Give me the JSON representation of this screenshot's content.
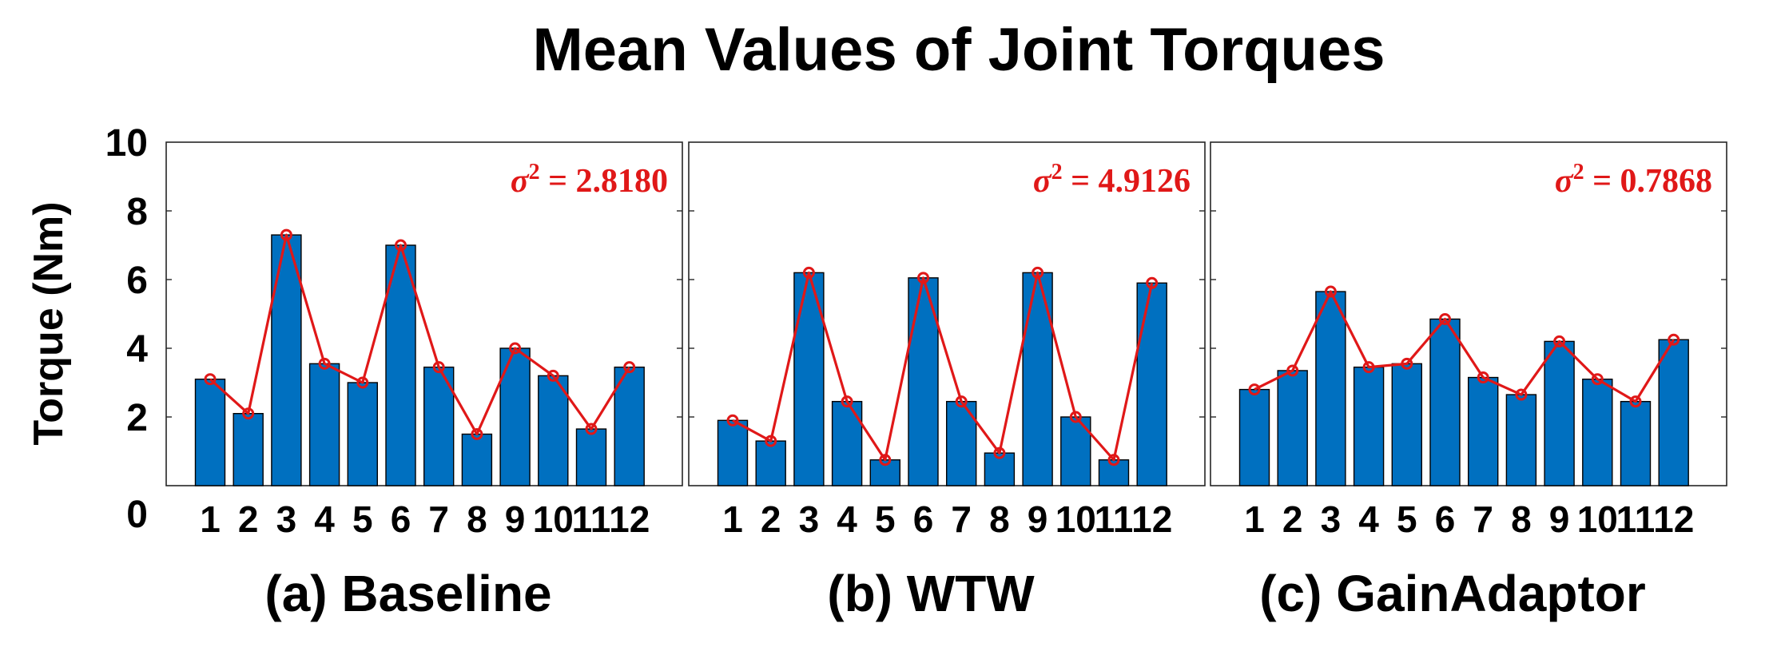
{
  "figure": {
    "title": "Mean Values of Joint Torques",
    "ylabel": "Torque (Nm)",
    "yticks": [
      "0",
      "2",
      "4",
      "6",
      "8",
      "10"
    ]
  },
  "colors": {
    "bar_fill": "#0070c0",
    "bar_edge": "#000000",
    "line": "#e01818",
    "axis": "#262626"
  },
  "chart_data": [
    {
      "type": "bar",
      "caption": "(a) Baseline",
      "annotation": {
        "symbol": "σ",
        "exponent": "2",
        "text": " = 2.8180"
      },
      "categories": [
        "1",
        "2",
        "3",
        "4",
        "5",
        "6",
        "7",
        "8",
        "9",
        "10",
        "11",
        "12"
      ],
      "values": [
        3.1,
        2.1,
        7.3,
        3.55,
        3.0,
        7.0,
        3.45,
        1.5,
        4.0,
        3.2,
        1.65,
        3.45
      ],
      "line_overlay": true,
      "ylim": [
        0,
        10
      ],
      "grid": false
    },
    {
      "type": "bar",
      "caption": "(b) WTW",
      "annotation": {
        "symbol": "σ",
        "exponent": "2",
        "text": " = 4.9126"
      },
      "categories": [
        "1",
        "2",
        "3",
        "4",
        "5",
        "6",
        "7",
        "8",
        "9",
        "10",
        "11",
        "12"
      ],
      "values": [
        1.9,
        1.3,
        6.2,
        2.45,
        0.75,
        6.05,
        2.45,
        0.95,
        6.2,
        2.0,
        0.75,
        5.9
      ],
      "line_overlay": true,
      "ylim": [
        0,
        10
      ],
      "grid": false
    },
    {
      "type": "bar",
      "caption": "(c) GainAdaptor",
      "annotation": {
        "symbol": "σ",
        "exponent": "2",
        "text": " = 0.7868"
      },
      "categories": [
        "1",
        "2",
        "3",
        "4",
        "5",
        "6",
        "7",
        "8",
        "9",
        "10",
        "11",
        "12"
      ],
      "values": [
        2.8,
        3.35,
        5.65,
        3.45,
        3.55,
        4.85,
        3.15,
        2.65,
        4.2,
        3.1,
        2.45,
        4.25
      ],
      "line_overlay": true,
      "ylim": [
        0,
        10
      ],
      "grid": false
    }
  ]
}
